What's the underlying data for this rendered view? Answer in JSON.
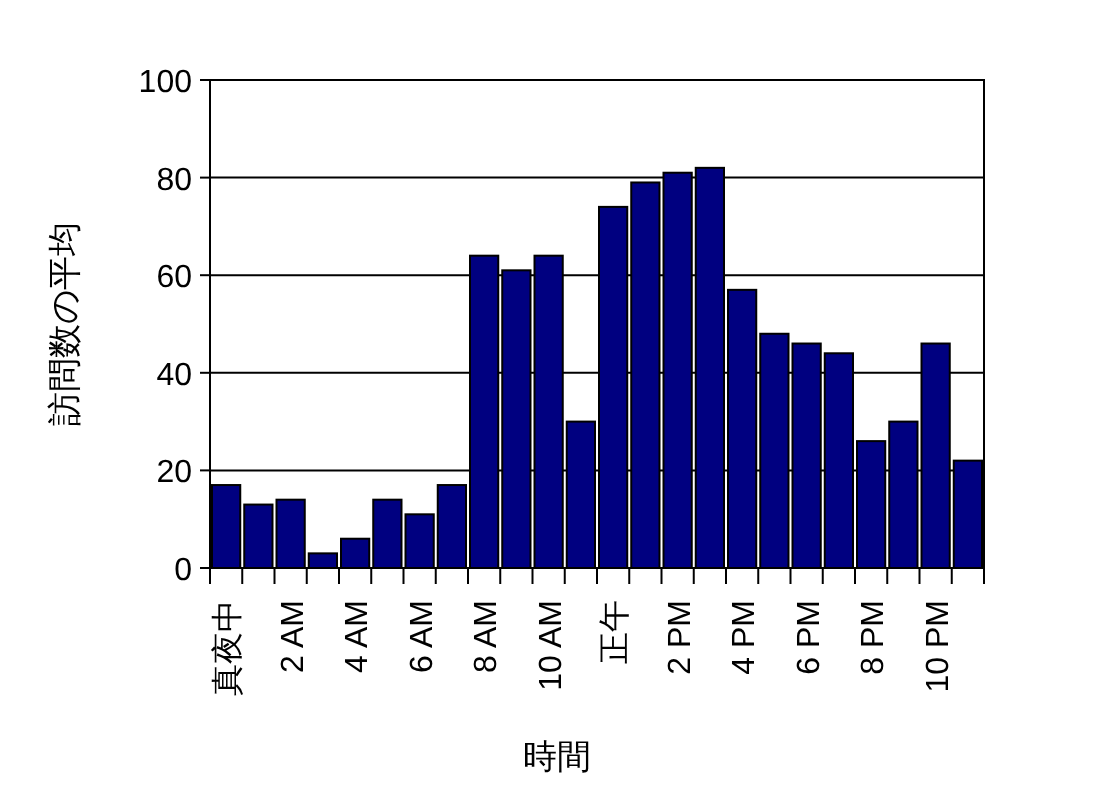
{
  "chart_data": {
    "type": "bar",
    "xlabel": "時間",
    "ylabel": "訪問数の平均",
    "categories": [
      "真夜中",
      null,
      "2 AM",
      null,
      "4 AM",
      null,
      "6 AM",
      null,
      "8 AM",
      null,
      "10 AM",
      null,
      "正午",
      null,
      "2 PM",
      null,
      "4 PM",
      null,
      "6 PM",
      null,
      "8 PM",
      null,
      "10 PM",
      null
    ],
    "values": [
      17,
      13,
      14,
      3,
      6,
      14,
      11,
      17,
      64,
      61,
      64,
      30,
      74,
      79,
      81,
      82,
      57,
      48,
      46,
      44,
      26,
      30,
      46,
      22
    ],
    "color": "#000080",
    "ylim": [
      0,
      100
    ],
    "yticks": [
      0,
      20,
      40,
      60,
      80,
      100
    ],
    "grid": "y"
  }
}
